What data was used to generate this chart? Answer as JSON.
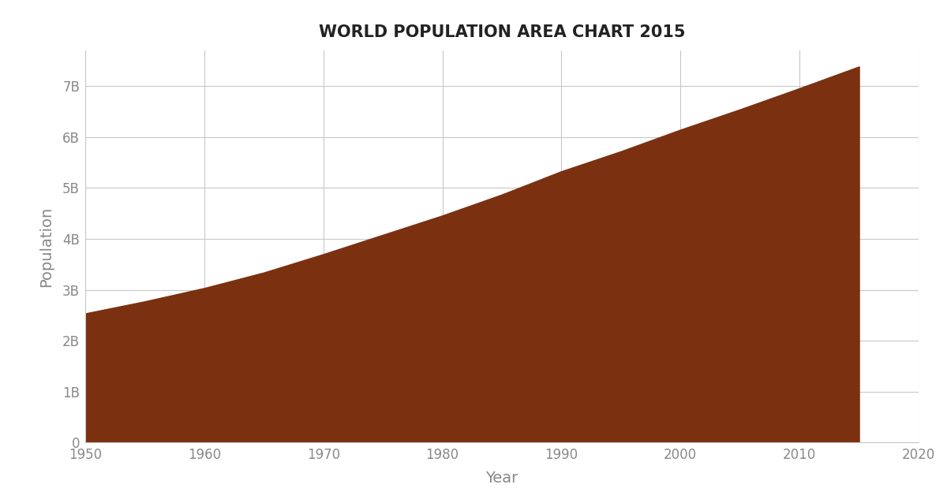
{
  "title": "WORLD POPULATION AREA CHART 2015",
  "xlabel": "Year",
  "ylabel": "Population",
  "background_color": "#ffffff",
  "area_color": "#7B3010",
  "area_alpha": 1.0,
  "grid_color": "#c8c8c8",
  "years": [
    1950,
    1955,
    1960,
    1965,
    1970,
    1975,
    1980,
    1985,
    1990,
    1995,
    2000,
    2005,
    2010,
    2015
  ],
  "population": [
    2536431000,
    2773019936,
    3034949748,
    3339583597,
    3700437046,
    4079480606,
    4458411534,
    4870921740,
    5327231061,
    5719468028,
    6143493823,
    6541907027,
    6956823603,
    7383008820
  ],
  "xlim": [
    1950,
    2020
  ],
  "ylim": [
    0,
    7700000000
  ],
  "xticks": [
    1950,
    1960,
    1970,
    1980,
    1990,
    2000,
    2010,
    2020
  ],
  "yticks": [
    0,
    1000000000,
    2000000000,
    3000000000,
    4000000000,
    5000000000,
    6000000000,
    7000000000
  ],
  "ytick_labels": [
    "0",
    "1B",
    "2B",
    "3B",
    "4B",
    "5B",
    "6B",
    "7B"
  ],
  "title_fontsize": 15,
  "axis_label_fontsize": 14,
  "tick_fontsize": 12,
  "tick_color": "#888888",
  "label_color": "#888888"
}
